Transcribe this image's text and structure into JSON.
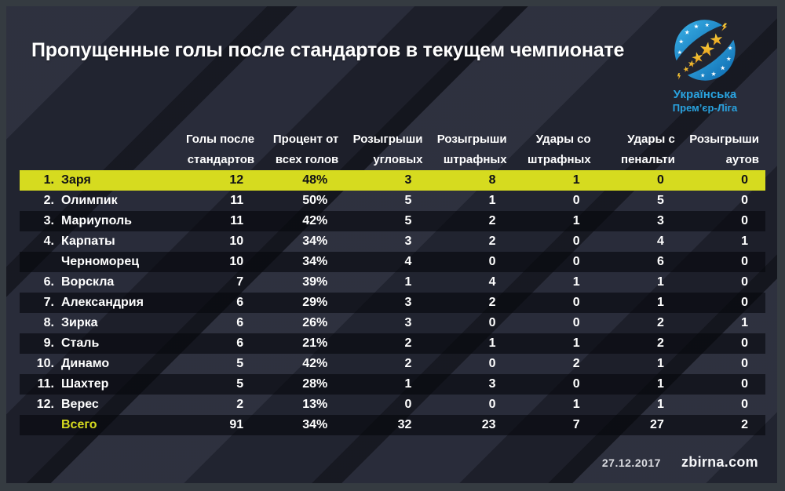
{
  "title": "Пропущенные голы после стандартов в текущем чемпионате",
  "logo": {
    "line1": "Українська",
    "line2": "Прем’єр-Ліга"
  },
  "table": {
    "columns": [
      {
        "line1": "Голы после",
        "line2": "стандартов"
      },
      {
        "line1": "Процент от",
        "line2": "всех голов"
      },
      {
        "line1": "Розыгрыши",
        "line2": "угловых"
      },
      {
        "line1": "Розыгрыши",
        "line2": "штрафных"
      },
      {
        "line1": "Удары со",
        "line2": "штрафных"
      },
      {
        "line1": "Удары с",
        "line2": "пенальти"
      },
      {
        "line1": "Розыгрыши",
        "line2": "аутов"
      }
    ],
    "rows": [
      {
        "rank": "1.",
        "team": "Заря",
        "values": [
          "12",
          "48%",
          "3",
          "8",
          "1",
          "0",
          "0"
        ],
        "highlight": true
      },
      {
        "rank": "2.",
        "team": "Олимпик",
        "values": [
          "11",
          "50%",
          "5",
          "1",
          "0",
          "5",
          "0"
        ]
      },
      {
        "rank": "3.",
        "team": "Мариуполь",
        "values": [
          "11",
          "42%",
          "5",
          "2",
          "1",
          "3",
          "0"
        ]
      },
      {
        "rank": "4.",
        "team": "Карпаты",
        "values": [
          "10",
          "34%",
          "3",
          "2",
          "0",
          "4",
          "1"
        ]
      },
      {
        "rank": "",
        "team": "Черноморец",
        "values": [
          "10",
          "34%",
          "4",
          "0",
          "0",
          "6",
          "0"
        ]
      },
      {
        "rank": "6.",
        "team": "Ворскла",
        "values": [
          "7",
          "39%",
          "1",
          "4",
          "1",
          "1",
          "0"
        ]
      },
      {
        "rank": "7.",
        "team": "Александрия",
        "values": [
          "6",
          "29%",
          "3",
          "2",
          "0",
          "1",
          "0"
        ]
      },
      {
        "rank": "8.",
        "team": "Зирка",
        "values": [
          "6",
          "26%",
          "3",
          "0",
          "0",
          "2",
          "1"
        ]
      },
      {
        "rank": "9.",
        "team": "Сталь",
        "values": [
          "6",
          "21%",
          "2",
          "1",
          "1",
          "2",
          "0"
        ]
      },
      {
        "rank": "10.",
        "team": "Динамо",
        "values": [
          "5",
          "42%",
          "2",
          "0",
          "2",
          "1",
          "0"
        ]
      },
      {
        "rank": "11.",
        "team": "Шахтер",
        "values": [
          "5",
          "28%",
          "1",
          "3",
          "0",
          "1",
          "0"
        ]
      },
      {
        "rank": "12.",
        "team": "Верес",
        "values": [
          "2",
          "13%",
          "0",
          "0",
          "1",
          "1",
          "0"
        ]
      }
    ],
    "total": {
      "label": "Всего",
      "values": [
        "91",
        "34%",
        "32",
        "23",
        "7",
        "27",
        "2"
      ]
    }
  },
  "footer": {
    "date": "27.12.2017",
    "site": "zbirna.com"
  },
  "colors": {
    "highlight_yellow": "#d6db1f",
    "panel_bg": "#252836",
    "frame_gray": "#353b41",
    "logo_blue": "#29a3e0",
    "star_gold": "#f2bb26",
    "text_white": "#ffffff"
  }
}
